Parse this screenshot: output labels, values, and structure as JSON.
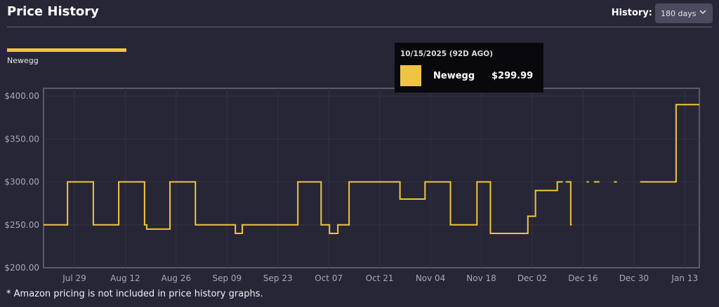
{
  "header": {
    "title": "Price History",
    "history_label": "History:",
    "history_value": "180 days"
  },
  "legend": {
    "label": "Newegg"
  },
  "tooltip": {
    "date": "10/15/2025 (92D AGO)",
    "store": "Newegg",
    "price": "$299.99"
  },
  "footnote": "* Amazon pricing is not included in price history graphs.",
  "colors": {
    "series": "#f0c63f",
    "background": "#272636"
  },
  "chart_data": {
    "type": "line",
    "title": "Price History",
    "x_unit": "days since Jul 29",
    "xlim": [
      -8.5,
      172
    ],
    "ylim": [
      200,
      400
    ],
    "grid": true,
    "legend_placement": "top-left",
    "x_ticks": [
      {
        "day": 0,
        "label": "Jul 29"
      },
      {
        "day": 14,
        "label": "Aug 12"
      },
      {
        "day": 28,
        "label": "Aug 26"
      },
      {
        "day": 42,
        "label": "Sep 09"
      },
      {
        "day": 56,
        "label": "Sep 23"
      },
      {
        "day": 70,
        "label": "Oct 07"
      },
      {
        "day": 84,
        "label": "Oct 21"
      },
      {
        "day": 98,
        "label": "Nov 04"
      },
      {
        "day": 112,
        "label": "Nov 18"
      },
      {
        "day": 126,
        "label": "Dec 02"
      },
      {
        "day": 140,
        "label": "Dec 16"
      },
      {
        "day": 154,
        "label": "Dec 30"
      },
      {
        "day": 168,
        "label": "Jan 13"
      }
    ],
    "y_ticks": [
      {
        "value": 200,
        "label": "$200.00"
      },
      {
        "value": 250,
        "label": "$250.00"
      },
      {
        "value": 300,
        "label": "$300.00"
      },
      {
        "value": 350,
        "label": "$350.00"
      },
      {
        "value": 400,
        "label": "$400.00"
      }
    ],
    "series": [
      {
        "name": "Newegg",
        "steps": [
          [
            -8.5,
            -1.9,
            250
          ],
          [
            -1.9,
            5.2,
            300
          ],
          [
            5.2,
            12.2,
            250
          ],
          [
            12.2,
            19.3,
            300
          ],
          [
            19.3,
            19.9,
            250
          ],
          [
            19.9,
            26.3,
            245
          ],
          [
            26.3,
            33.3,
            300
          ],
          [
            33.3,
            44.3,
            250
          ],
          [
            44.3,
            46.2,
            240
          ],
          [
            46.2,
            61.5,
            250
          ],
          [
            61.5,
            67.9,
            300
          ],
          [
            67.9,
            70.2,
            250
          ],
          [
            70.2,
            72.5,
            240
          ],
          [
            72.5,
            75.6,
            250
          ],
          [
            75.6,
            89.6,
            300
          ],
          [
            89.6,
            96.5,
            280
          ],
          [
            96.5,
            103.5,
            300
          ],
          [
            103.5,
            110.8,
            250
          ],
          [
            110.8,
            114.5,
            300
          ],
          [
            114.5,
            124.8,
            240
          ],
          [
            124.8,
            126.9,
            260
          ],
          [
            126.9,
            132.9,
            290
          ],
          [
            132.9,
            134.4,
            300
          ],
          [
            135.2,
            136.6,
            300
          ],
          [
            136.6,
            136.9,
            250
          ],
          [
            141.0,
            141.6,
            300
          ],
          [
            143.0,
            144.5,
            300
          ],
          [
            148.5,
            149.3,
            300
          ],
          [
            155.7,
            165.6,
            300
          ],
          [
            165.6,
            172,
            390
          ]
        ]
      }
    ]
  }
}
